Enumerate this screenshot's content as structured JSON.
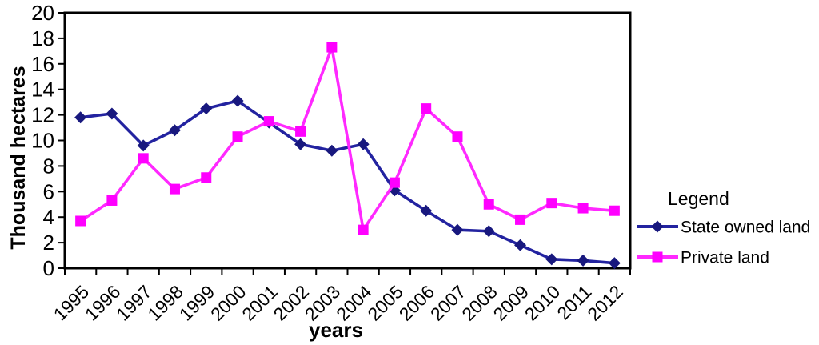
{
  "chart_data": {
    "type": "line",
    "title": "",
    "xlabel": "years",
    "ylabel": "Thousand hectares",
    "ylim": [
      0,
      20
    ],
    "ytick_step": 2,
    "grid": false,
    "background": "#FFFFFF",
    "axis_color": "#000000",
    "categories": [
      "1995",
      "1996",
      "1997",
      "1998",
      "1999",
      "2000",
      "2001",
      "2002",
      "2003",
      "2004",
      "2005",
      "2006",
      "2007",
      "2008",
      "2009",
      "2010",
      "2011",
      "2012"
    ],
    "series": [
      {
        "name": "State owned land",
        "marker": "diamond",
        "line_color": "#2323A0",
        "marker_color": "#18187E",
        "values": [
          11.8,
          12.1,
          9.6,
          10.8,
          12.5,
          13.1,
          11.4,
          9.7,
          9.2,
          9.7,
          6.1,
          4.5,
          3.0,
          2.9,
          1.8,
          0.7,
          0.6,
          0.4
        ]
      },
      {
        "name": "Private land",
        "marker": "square",
        "line_color": "#FF29FF",
        "marker_color": "#FF00FF",
        "values": [
          3.7,
          5.3,
          8.6,
          6.2,
          7.1,
          10.3,
          11.5,
          10.7,
          17.3,
          3.0,
          6.7,
          12.5,
          10.3,
          5.0,
          3.8,
          5.1,
          4.7,
          4.5
        ]
      }
    ],
    "legend": {
      "title": "Legend",
      "position": "right"
    }
  }
}
